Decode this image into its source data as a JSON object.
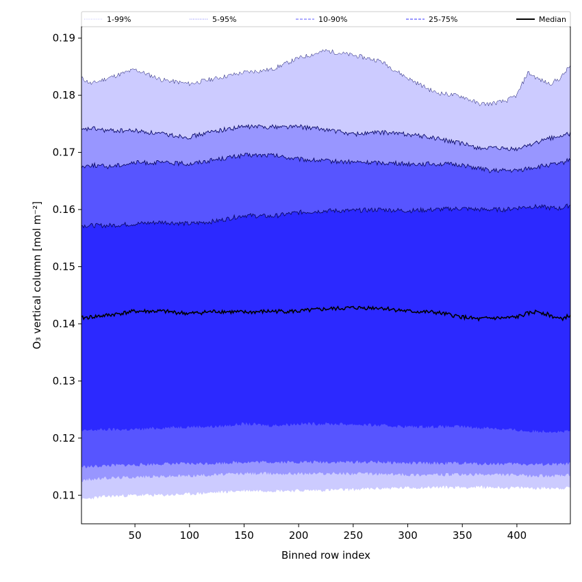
{
  "chart_data": {
    "type": "area",
    "xlabel": "Binned row index",
    "ylabel": "O₃ vertical column [mol m⁻²]",
    "xlim": [
      1,
      449
    ],
    "ylim": [
      0.105,
      0.192
    ],
    "xticks": [
      50,
      100,
      150,
      200,
      250,
      300,
      350,
      400
    ],
    "xtick_labels": [
      "50",
      "100",
      "150",
      "200",
      "250",
      "300",
      "350",
      "400"
    ],
    "yticks": [
      0.11,
      0.12,
      0.13,
      0.14,
      0.15,
      0.16,
      0.17,
      0.18,
      0.19
    ],
    "ytick_labels": [
      "0.11",
      "0.12",
      "0.13",
      "0.14",
      "0.15",
      "0.16",
      "0.17",
      "0.18",
      "0.19"
    ],
    "legend_position": "top, above plot",
    "x": [
      1,
      10,
      25,
      50,
      75,
      100,
      125,
      150,
      175,
      200,
      225,
      250,
      275,
      300,
      325,
      350,
      365,
      375,
      390,
      400,
      410,
      420,
      430,
      440,
      449
    ],
    "bands": [
      {
        "name": "1-99%",
        "fill": "#cccbff",
        "upper": [
          0.183,
          0.182,
          0.183,
          0.1845,
          0.1827,
          0.182,
          0.183,
          0.184,
          0.1845,
          0.1865,
          0.1878,
          0.187,
          0.186,
          0.183,
          0.1805,
          0.1798,
          0.1785,
          0.1785,
          0.179,
          0.18,
          0.184,
          0.1828,
          0.182,
          0.183,
          0.1852
        ],
        "lower": [
          0.1092,
          0.1095,
          0.1098,
          0.11,
          0.11,
          0.1102,
          0.1105,
          0.1108,
          0.1108,
          0.1108,
          0.1109,
          0.111,
          0.1112,
          0.1113,
          0.1114,
          0.1114,
          0.1114,
          0.1114,
          0.1113,
          0.1113,
          0.1113,
          0.1112,
          0.1113,
          0.1112,
          0.1113
        ]
      },
      {
        "name": "5-95%",
        "fill": "#9896ff",
        "upper": [
          0.1738,
          0.1742,
          0.1738,
          0.1738,
          0.1732,
          0.1727,
          0.1738,
          0.1745,
          0.1745,
          0.1745,
          0.174,
          0.1732,
          0.1735,
          0.1732,
          0.1725,
          0.1715,
          0.1708,
          0.1707,
          0.1706,
          0.1705,
          0.1713,
          0.1718,
          0.1725,
          0.1728,
          0.1733
        ],
        "lower": [
          0.1125,
          0.1128,
          0.113,
          0.1132,
          0.1133,
          0.1134,
          0.1136,
          0.1138,
          0.1138,
          0.1138,
          0.1138,
          0.1138,
          0.1137,
          0.1136,
          0.1136,
          0.1136,
          0.1136,
          0.1136,
          0.1136,
          0.1135,
          0.1134,
          0.1134,
          0.1134,
          0.1134,
          0.1135
        ]
      },
      {
        "name": "10-90%",
        "fill": "#5755ff",
        "upper": [
          0.1675,
          0.1678,
          0.1675,
          0.1682,
          0.1682,
          0.168,
          0.1688,
          0.1695,
          0.1695,
          0.1688,
          0.1685,
          0.1683,
          0.1682,
          0.168,
          0.168,
          0.1678,
          0.1672,
          0.1668,
          0.1668,
          0.1668,
          0.1672,
          0.1675,
          0.1678,
          0.168,
          0.1688
        ],
        "lower": [
          0.115,
          0.115,
          0.1152,
          0.1153,
          0.1155,
          0.1155,
          0.1156,
          0.1158,
          0.1158,
          0.1158,
          0.1158,
          0.1158,
          0.1158,
          0.1156,
          0.1156,
          0.1156,
          0.1155,
          0.1155,
          0.1155,
          0.1155,
          0.1154,
          0.1154,
          0.1154,
          0.1154,
          0.1155
        ]
      },
      {
        "name": "25-75%",
        "fill": "#2c29ff",
        "upper": [
          0.1572,
          0.1572,
          0.1572,
          0.1575,
          0.1578,
          0.1575,
          0.158,
          0.159,
          0.1588,
          0.1595,
          0.1598,
          0.1598,
          0.16,
          0.1598,
          0.16,
          0.1602,
          0.16,
          0.16,
          0.16,
          0.1603,
          0.1605,
          0.1605,
          0.1603,
          0.1602,
          0.1608
        ],
        "lower": [
          0.1212,
          0.1214,
          0.1215,
          0.1215,
          0.1218,
          0.122,
          0.122,
          0.1225,
          0.1222,
          0.1225,
          0.1225,
          0.1224,
          0.1222,
          0.122,
          0.122,
          0.122,
          0.1218,
          0.1218,
          0.1215,
          0.1214,
          0.1212,
          0.1212,
          0.1212,
          0.1211,
          0.1212
        ]
      }
    ],
    "series": [
      {
        "name": "Median",
        "color": "#000000",
        "values": [
          0.141,
          0.1412,
          0.1415,
          0.1422,
          0.1422,
          0.1418,
          0.1422,
          0.142,
          0.1422,
          0.1422,
          0.1426,
          0.1428,
          0.1428,
          0.1422,
          0.142,
          0.1412,
          0.1408,
          0.141,
          0.141,
          0.1412,
          0.1418,
          0.1422,
          0.1415,
          0.1408,
          0.1415
        ]
      }
    ],
    "legend": [
      {
        "label": "1-99%",
        "color": "#cccbff",
        "style": "dotted"
      },
      {
        "label": "5-95%",
        "color": "#9896ff",
        "style": "dotted"
      },
      {
        "label": "10-90%",
        "color": "#7a78ff",
        "style": "dashed"
      },
      {
        "label": "25-75%",
        "color": "#5a58ff",
        "style": "dashed"
      },
      {
        "label": "Median",
        "color": "#000000",
        "style": "solid"
      }
    ]
  }
}
